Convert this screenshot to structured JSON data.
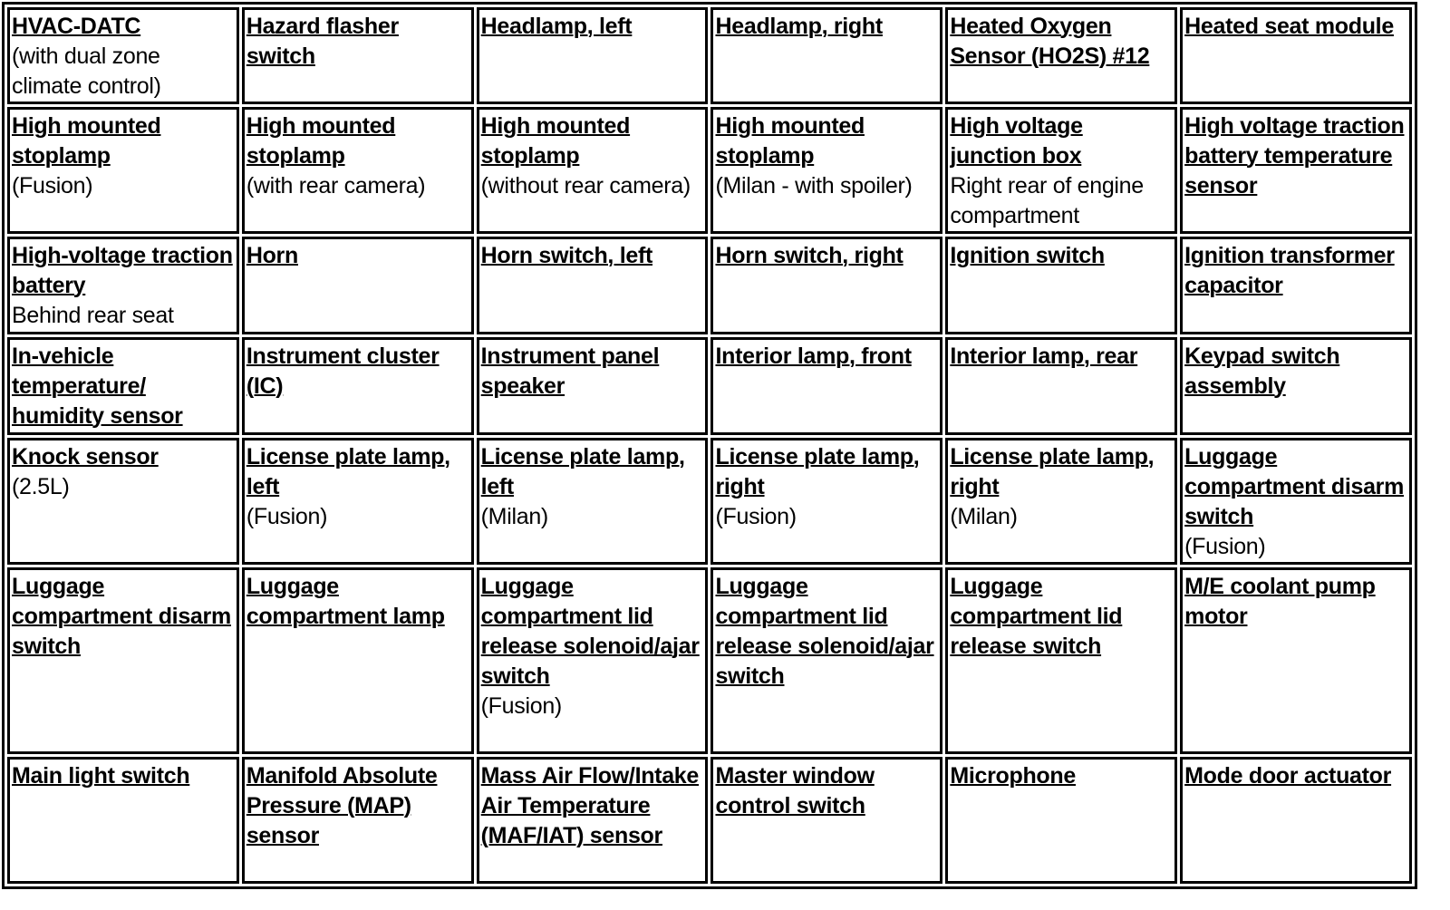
{
  "rows": [
    [
      {
        "link": "HVAC-DATC",
        "note": "(with dual zone climate control)"
      },
      {
        "link": "Hazard flasher switch"
      },
      {
        "link": "Headlamp, left"
      },
      {
        "link": "Headlamp, right"
      },
      {
        "link": "Heated Oxygen Sensor (HO2S) #12"
      },
      {
        "link": "Heated seat module"
      }
    ],
    [
      {
        "link": "High mounted stoplamp",
        "note": "(Fusion)"
      },
      {
        "link": "High mounted stoplamp",
        "note": "(with rear camera)"
      },
      {
        "link": "High mounted stoplamp",
        "note": "(without rear camera)"
      },
      {
        "link": "High mounted stoplamp",
        "note": "(Milan - with spoiler)"
      },
      {
        "link": "High voltage junction box",
        "note": "Right rear of engine compartment"
      },
      {
        "link": "High voltage traction battery temperature sensor"
      }
    ],
    [
      {
        "link": "High-voltage traction battery",
        "note": "Behind rear seat"
      },
      {
        "link": "Horn"
      },
      {
        "link": "Horn switch, left"
      },
      {
        "link": "Horn switch, right"
      },
      {
        "link": "Ignition switch"
      },
      {
        "link": "Ignition transformer capacitor"
      }
    ],
    [
      {
        "link": "In-vehicle temperature/ humidity sensor"
      },
      {
        "link": "Instrument cluster (IC)"
      },
      {
        "link": "Instrument panel speaker"
      },
      {
        "link": "Interior lamp, front"
      },
      {
        "link": "Interior lamp, rear"
      },
      {
        "link": "Keypad switch assembly"
      }
    ],
    [
      {
        "link": "Knock sensor",
        "note": "(2.5L)"
      },
      {
        "link": "License plate lamp, left",
        "note": "(Fusion)"
      },
      {
        "link": "License plate lamp, left",
        "note": "(Milan)"
      },
      {
        "link": "License plate lamp, right",
        "note": "(Fusion)"
      },
      {
        "link": "License plate lamp, right",
        "note": "(Milan)"
      },
      {
        "link": "Luggage compartment disarm switch",
        "note": "(Fusion)"
      }
    ],
    [
      {
        "link": "Luggage compartment disarm switch"
      },
      {
        "link": "Luggage compartment lamp"
      },
      {
        "link": "Luggage compartment lid release solenoid/ajar switch",
        "note": "(Fusion)"
      },
      {
        "link": "Luggage compartment lid release solenoid/ajar switch"
      },
      {
        "link": "Luggage compartment lid release switch"
      },
      {
        "link": "M/E coolant pump motor"
      }
    ],
    [
      {
        "link": "Main light switch"
      },
      {
        "link": "Manifold Absolute Pressure (MAP) sensor"
      },
      {
        "link": "Mass Air Flow/Intake Air Temperature (MAF/IAT) sensor"
      },
      {
        "link": "Master window control switch"
      },
      {
        "link": "Microphone"
      },
      {
        "link": "Mode door actuator"
      }
    ]
  ]
}
